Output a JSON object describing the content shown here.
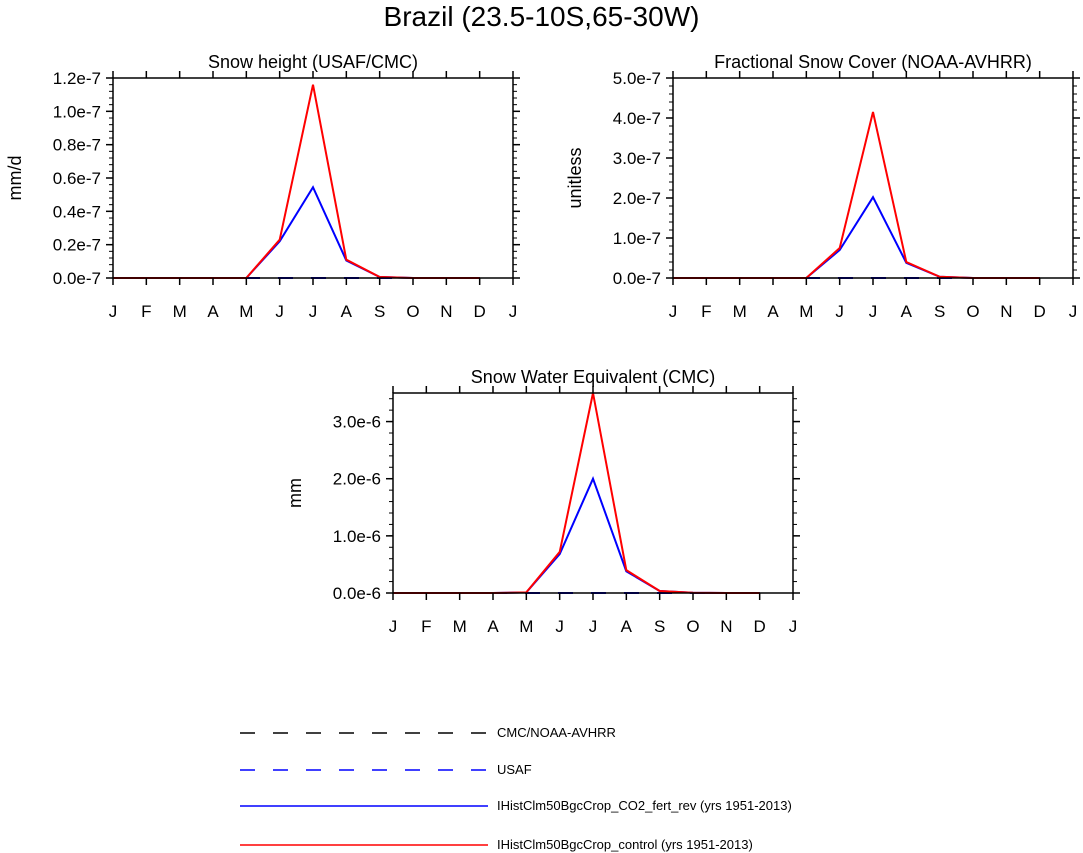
{
  "page_title": "Brazil (23.5-10S,65-30W)",
  "chart_data": [
    {
      "type": "line",
      "title": "Snow height (USAF/CMC)",
      "ylabel": "mm/d",
      "xlabel": "",
      "x_tick_labels": [
        "J",
        "F",
        "M",
        "A",
        "M",
        "J",
        "J",
        "A",
        "S",
        "O",
        "N",
        "D",
        "J"
      ],
      "y_tick_labels": [
        "0.0e-7",
        "0.2e-7",
        "0.4e-7",
        "0.6e-7",
        "0.8e-7",
        "1.0e-7",
        "1.2e-7"
      ],
      "y_ticks": [
        0,
        2e-08,
        4e-08,
        6e-08,
        8e-08,
        1e-07,
        1.2e-07
      ],
      "ylim": [
        0,
        1.2e-07
      ],
      "series": [
        {
          "name": "CMC/NOAA-AVHRR",
          "color": "#000000",
          "style": "dashed",
          "values": [
            0,
            0,
            0,
            0,
            0,
            0,
            0,
            0,
            0,
            0,
            0,
            0
          ]
        },
        {
          "name": "USAF",
          "color": "#0000ff",
          "style": "dashed",
          "values": [
            0,
            0,
            0,
            0,
            0,
            0,
            0,
            0,
            0,
            0,
            0,
            0
          ]
        },
        {
          "name": "IHistClm50BgcCrop_CO2_fert_rev (yrs 1951-2013)",
          "color": "#0000ff",
          "style": "solid",
          "values": [
            0,
            0,
            0,
            0,
            0,
            2.2e-08,
            5.45e-08,
            1.05e-08,
            6e-10,
            0,
            0,
            0
          ]
        },
        {
          "name": "IHistClm50BgcCrop_control (yrs 1951-2013)",
          "color": "#ff0000",
          "style": "solid",
          "values": [
            0,
            0,
            0,
            0,
            0,
            2.3e-08,
            1.16e-07,
            1.1e-08,
            6e-10,
            0,
            0,
            0
          ]
        }
      ]
    },
    {
      "type": "line",
      "title": "Fractional Snow Cover (NOAA-AVHRR)",
      "ylabel": "unitless",
      "xlabel": "",
      "x_tick_labels": [
        "J",
        "F",
        "M",
        "A",
        "M",
        "J",
        "J",
        "A",
        "S",
        "O",
        "N",
        "D",
        "J"
      ],
      "y_tick_labels": [
        "0.0e-7",
        "1.0e-7",
        "2.0e-7",
        "3.0e-7",
        "4.0e-7",
        "5.0e-7"
      ],
      "y_ticks": [
        0,
        1e-07,
        2e-07,
        3e-07,
        4e-07,
        5e-07
      ],
      "ylim": [
        0,
        5e-07
      ],
      "series": [
        {
          "name": "CMC/NOAA-AVHRR",
          "color": "#000000",
          "style": "dashed",
          "values": [
            0,
            0,
            0,
            0,
            0,
            0,
            0,
            0,
            0,
            0,
            0,
            0
          ]
        },
        {
          "name": "USAF",
          "color": "#0000ff",
          "style": "dashed",
          "values": [
            0,
            0,
            0,
            0,
            0,
            0,
            0,
            0,
            0,
            0,
            0,
            0
          ]
        },
        {
          "name": "IHistClm50BgcCrop_CO2_fert_rev (yrs 1951-2013)",
          "color": "#0000ff",
          "style": "solid",
          "values": [
            0,
            0,
            0,
            0,
            0,
            7e-08,
            2.02e-07,
            3.8e-08,
            3e-09,
            0,
            0,
            0
          ]
        },
        {
          "name": "IHistClm50BgcCrop_control (yrs 1951-2013)",
          "color": "#ff0000",
          "style": "solid",
          "values": [
            0,
            0,
            0,
            0,
            0,
            7.5e-08,
            4.15e-07,
            4e-08,
            3e-09,
            0,
            0,
            0
          ]
        }
      ]
    },
    {
      "type": "line",
      "title": "Snow Water Equivalent (CMC)",
      "ylabel": "mm",
      "xlabel": "",
      "x_tick_labels": [
        "J",
        "F",
        "M",
        "A",
        "M",
        "J",
        "J",
        "A",
        "S",
        "O",
        "N",
        "D",
        "J"
      ],
      "y_tick_labels": [
        "0.0e-6",
        "1.0e-6",
        "2.0e-6",
        "3.0e-6"
      ],
      "y_ticks": [
        0,
        1e-06,
        2e-06,
        3e-06
      ],
      "ylim": [
        0,
        3.5e-06
      ],
      "series": [
        {
          "name": "CMC/NOAA-AVHRR",
          "color": "#000000",
          "style": "dashed",
          "values": [
            0,
            0,
            0,
            0,
            0,
            0,
            0,
            0,
            0,
            0,
            0,
            0
          ]
        },
        {
          "name": "USAF",
          "color": "#0000ff",
          "style": "dashed",
          "values": [
            0,
            0,
            0,
            0,
            0,
            0,
            0,
            0,
            0,
            0,
            0,
            0
          ]
        },
        {
          "name": "IHistClm50BgcCrop_CO2_fert_rev (yrs 1951-2013)",
          "color": "#0000ff",
          "style": "solid",
          "values": [
            0,
            0,
            0,
            0,
            1e-08,
            6.8e-07,
            2e-06,
            3.8e-07,
            3.5e-08,
            3e-09,
            0,
            0
          ]
        },
        {
          "name": "IHistClm50BgcCrop_control (yrs 1951-2013)",
          "color": "#ff0000",
          "style": "solid",
          "values": [
            0,
            0,
            0,
            0,
            1e-08,
            7.2e-07,
            3.5e-06,
            4e-07,
            3.5e-08,
            3e-09,
            0,
            0
          ]
        }
      ]
    }
  ],
  "legend": [
    {
      "label": "CMC/NOAA-AVHRR",
      "color": "#000000",
      "style": "dashed"
    },
    {
      "label": "USAF",
      "color": "#0000ff",
      "style": "dashed"
    },
    {
      "label": "IHistClm50BgcCrop_CO2_fert_rev (yrs 1951-2013)",
      "color": "#0000ff",
      "style": "solid"
    },
    {
      "label": "IHistClm50BgcCrop_control (yrs 1951-2013)",
      "color": "#ff0000",
      "style": "solid"
    }
  ]
}
